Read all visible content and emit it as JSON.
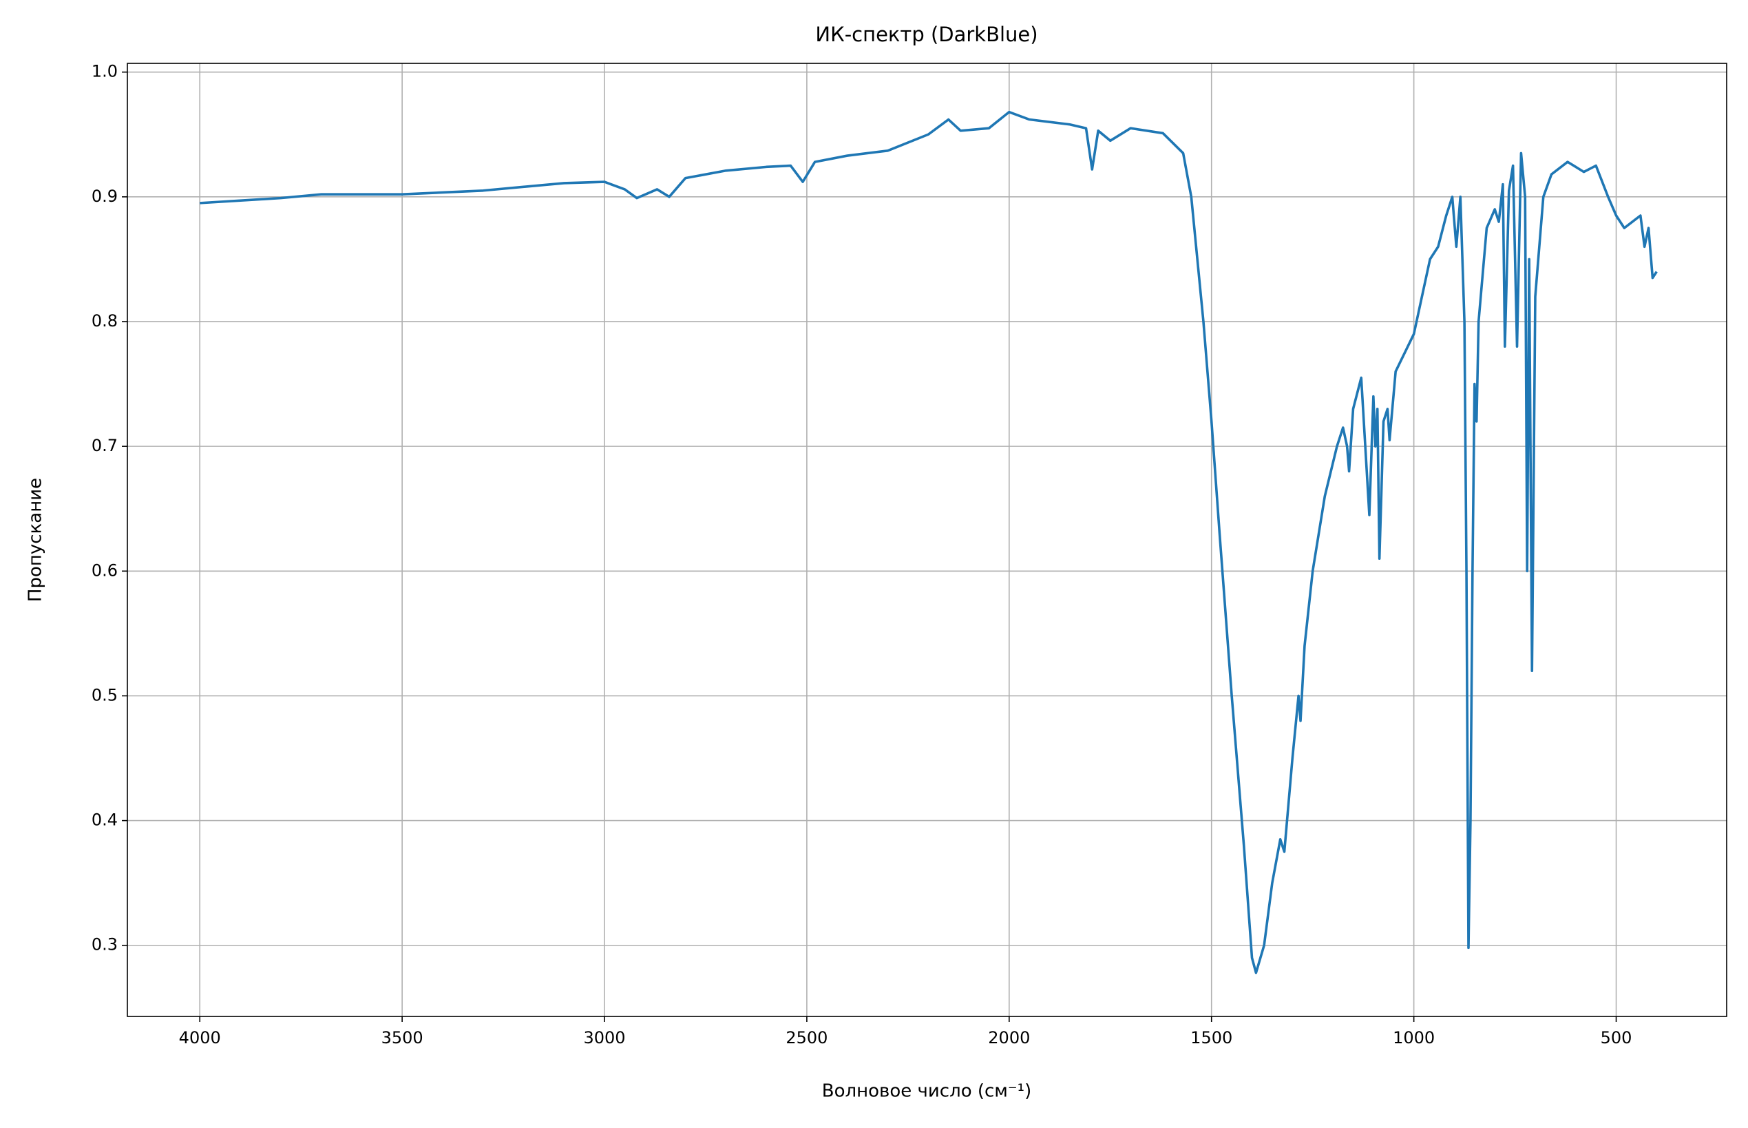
{
  "chart_data": {
    "type": "line",
    "title": "ИК-спектр (DarkBlue)",
    "xlabel": "Волновое число (см⁻¹)",
    "ylabel": "Пропускание",
    "color": "#1f77b4",
    "grid": true,
    "xlim": [
      4179,
      227
    ],
    "ylim": [
      0.243,
      1.007
    ],
    "xticks": [
      4000,
      3500,
      3000,
      2500,
      2000,
      1500,
      1000,
      500
    ],
    "yticks": [
      0.3,
      0.4,
      0.5,
      0.6,
      0.7,
      0.8,
      0.9,
      {
        "value": 1,
        "label": "1.0"
      }
    ],
    "x": [
      4000,
      3800,
      3700,
      3500,
      3300,
      3100,
      3000,
      2950,
      2920,
      2870,
      2840,
      2800,
      2700,
      2600,
      2540,
      2510,
      2480,
      2400,
      2300,
      2200,
      2150,
      2120,
      2050,
      2000,
      1950,
      1850,
      1810,
      1795,
      1780,
      1750,
      1700,
      1620,
      1570,
      1550,
      1520,
      1500,
      1480,
      1450,
      1420,
      1400,
      1390,
      1370,
      1350,
      1330,
      1320,
      1300,
      1285,
      1280,
      1270,
      1250,
      1220,
      1190,
      1175,
      1165,
      1160,
      1150,
      1130,
      1120,
      1110,
      1100,
      1095,
      1090,
      1085,
      1075,
      1065,
      1060,
      1045,
      1000,
      980,
      960,
      940,
      920,
      905,
      895,
      885,
      875,
      870,
      865,
      860,
      855,
      850,
      845,
      840,
      820,
      800,
      790,
      780,
      775,
      765,
      755,
      745,
      735,
      725,
      720,
      715,
      708,
      700,
      680,
      660,
      620,
      580,
      550,
      520,
      500,
      480,
      460,
      440,
      430,
      420,
      410,
      400
    ],
    "values": [
      0.895,
      0.899,
      0.902,
      0.902,
      0.905,
      0.911,
      0.912,
      0.906,
      0.899,
      0.906,
      0.9,
      0.915,
      0.921,
      0.924,
      0.925,
      0.912,
      0.928,
      0.933,
      0.937,
      0.95,
      0.962,
      0.953,
      0.955,
      0.968,
      0.962,
      0.958,
      0.955,
      0.922,
      0.953,
      0.945,
      0.955,
      0.951,
      0.935,
      0.9,
      0.8,
      0.72,
      0.63,
      0.5,
      0.38,
      0.29,
      0.278,
      0.3,
      0.35,
      0.385,
      0.375,
      0.45,
      0.5,
      0.48,
      0.54,
      0.6,
      0.66,
      0.7,
      0.715,
      0.7,
      0.68,
      0.73,
      0.755,
      0.7,
      0.645,
      0.74,
      0.7,
      0.73,
      0.61,
      0.72,
      0.73,
      0.705,
      0.76,
      0.79,
      0.82,
      0.85,
      0.86,
      0.885,
      0.9,
      0.86,
      0.9,
      0.8,
      0.6,
      0.298,
      0.4,
      0.6,
      0.75,
      0.72,
      0.8,
      0.875,
      0.89,
      0.88,
      0.91,
      0.78,
      0.905,
      0.925,
      0.78,
      0.935,
      0.9,
      0.6,
      0.85,
      0.52,
      0.82,
      0.9,
      0.918,
      0.928,
      0.92,
      0.925,
      0.9,
      0.885,
      0.875,
      0.88,
      0.885,
      0.86,
      0.875,
      0.835,
      0.84
    ]
  }
}
